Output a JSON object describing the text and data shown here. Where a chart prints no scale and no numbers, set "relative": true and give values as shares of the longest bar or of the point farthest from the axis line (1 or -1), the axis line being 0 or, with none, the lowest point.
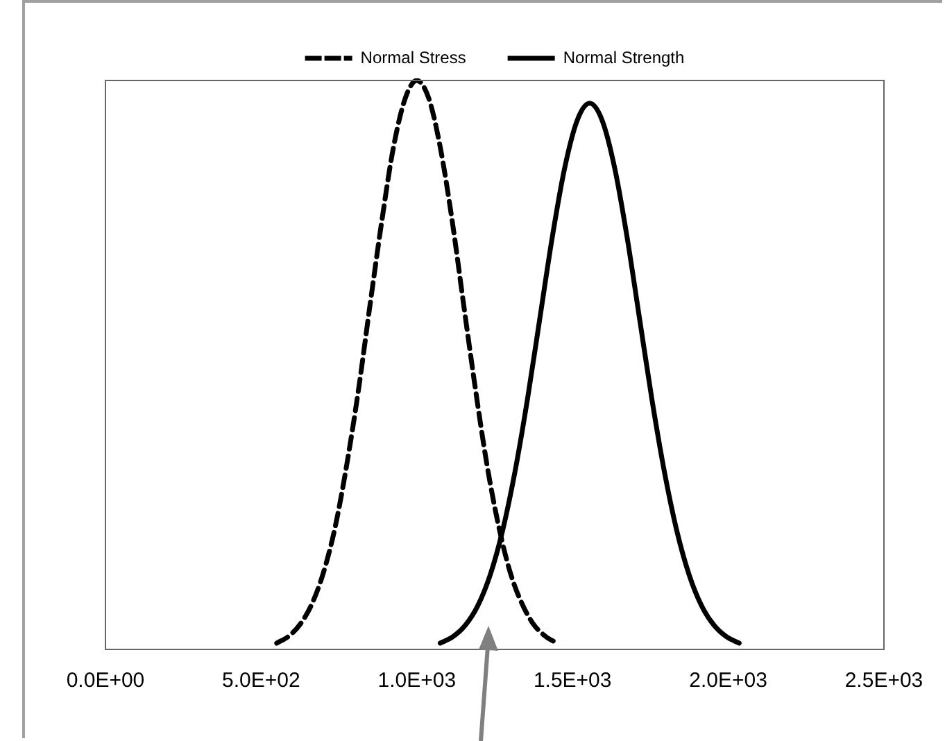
{
  "chart_data": {
    "type": "line",
    "relative": true,
    "legend": "top",
    "marker": "none",
    "grid": false,
    "xlim": [
      0,
      2500
    ],
    "xticks": [
      {
        "value": 0,
        "label": "0.0E+00"
      },
      {
        "value": 500,
        "label": "5.0E+02"
      },
      {
        "value": 1000,
        "label": "1.0E+03"
      },
      {
        "value": 1500,
        "label": "1.5E+03"
      },
      {
        "value": 2000,
        "label": "2.0E+03"
      },
      {
        "value": 2500,
        "label": "2.5E+03"
      }
    ],
    "series": [
      {
        "name": "Normal Stress",
        "color": "#000000",
        "line_style": "dashed",
        "x": [
          550,
          588,
          625,
          663,
          700,
          738,
          775,
          813,
          850,
          888,
          925,
          963,
          1000,
          1038,
          1075,
          1113,
          1150,
          1188,
          1225,
          1263,
          1300,
          1338,
          1375,
          1413,
          1450
        ],
        "values": [
          0.011,
          0.023,
          0.044,
          0.08,
          0.135,
          0.216,
          0.325,
          0.458,
          0.607,
          0.755,
          0.883,
          0.969,
          1,
          0.969,
          0.883,
          0.755,
          0.607,
          0.458,
          0.325,
          0.216,
          0.135,
          0.08,
          0.044,
          0.023,
          0.011
        ]
      },
      {
        "name": "Normal Strength",
        "color": "#000000",
        "line_style": "solid",
        "x": [
          1075,
          1115,
          1155,
          1195,
          1235,
          1275,
          1315,
          1355,
          1395,
          1435,
          1475,
          1515,
          1555,
          1595,
          1635,
          1675,
          1715,
          1755,
          1795,
          1835,
          1875,
          1915,
          1955,
          1995,
          2035
        ],
        "values": [
          0.011,
          0.022,
          0.042,
          0.076,
          0.13,
          0.208,
          0.312,
          0.439,
          0.582,
          0.725,
          0.847,
          0.93,
          0.96,
          0.93,
          0.847,
          0.725,
          0.582,
          0.439,
          0.312,
          0.208,
          0.13,
          0.076,
          0.042,
          0.022,
          0.011
        ]
      }
    ]
  }
}
